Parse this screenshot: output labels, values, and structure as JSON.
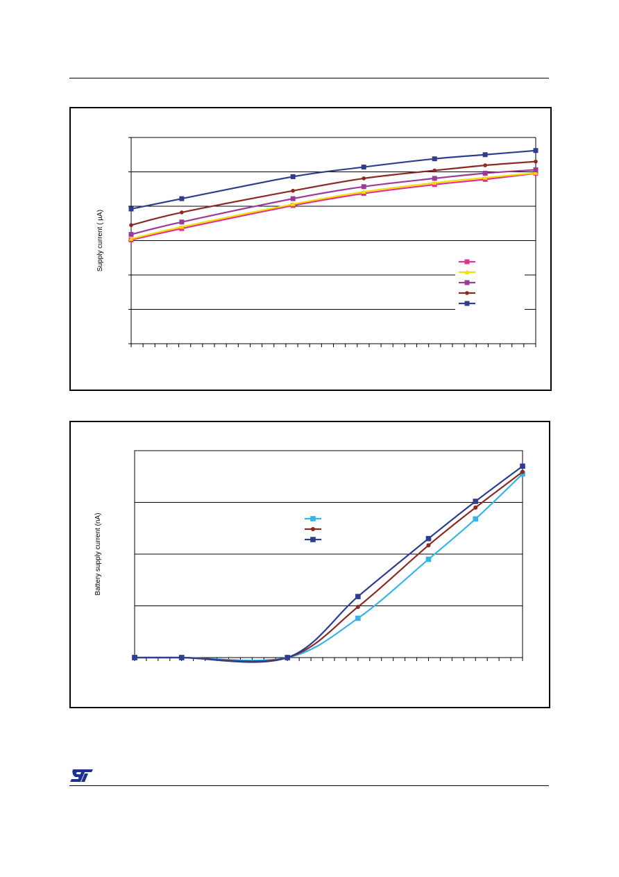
{
  "charts": [
    {
      "ylabel": "Supply current ( µA)",
      "series": [
        {
          "color": "#e0338c",
          "marker": "square",
          "points": [
            [
              0,
              3.02
            ],
            [
              2.5,
              3.35
            ],
            [
              8,
              4.02
            ],
            [
              11.5,
              4.37
            ],
            [
              15,
              4.63
            ],
            [
              17.5,
              4.78
            ],
            [
              20,
              4.96
            ]
          ]
        },
        {
          "color": "#f0e000",
          "marker": "triangle",
          "points": [
            [
              0,
              3.05
            ],
            [
              2.5,
              3.4
            ],
            [
              8,
              4.06
            ],
            [
              11.5,
              4.42
            ],
            [
              15,
              4.68
            ],
            [
              17.5,
              4.83
            ],
            [
              20,
              4.97
            ]
          ]
        },
        {
          "color": "#9a3a9a",
          "marker": "square",
          "points": [
            [
              0,
              3.18
            ],
            [
              2.5,
              3.54
            ],
            [
              8,
              4.22
            ],
            [
              11.5,
              4.57
            ],
            [
              15,
              4.81
            ],
            [
              17.5,
              4.96
            ],
            [
              20,
              5.06
            ]
          ]
        },
        {
          "color": "#8b2a22",
          "marker": "circle",
          "points": [
            [
              0,
              3.45
            ],
            [
              2.5,
              3.82
            ],
            [
              8,
              4.45
            ],
            [
              11.5,
              4.81
            ],
            [
              15,
              5.04
            ],
            [
              17.5,
              5.19
            ],
            [
              20,
              5.3
            ]
          ]
        },
        {
          "color": "#2e3d8f",
          "marker": "square",
          "points": [
            [
              0,
              3.92
            ],
            [
              2.5,
              4.22
            ],
            [
              8,
              4.86
            ],
            [
              11.5,
              5.14
            ],
            [
              15,
              5.38
            ],
            [
              17.5,
              5.5
            ],
            [
              20,
              5.62
            ]
          ]
        }
      ]
    },
    {
      "ylabel": "Battery supply current (nA)",
      "series": [
        {
          "color": "#33b5e8",
          "marker": "square",
          "points": [
            [
              0,
              0
            ],
            [
              4,
              0
            ],
            [
              13,
              0
            ],
            [
              19,
              0.76
            ],
            [
              25,
              1.9
            ],
            [
              29,
              2.68
            ],
            [
              33,
              3.55
            ]
          ]
        },
        {
          "color": "#8b2a22",
          "marker": "circle",
          "points": [
            [
              0,
              0
            ],
            [
              4,
              0
            ],
            [
              13,
              0
            ],
            [
              19,
              0.98
            ],
            [
              25,
              2.17
            ],
            [
              29,
              2.9
            ],
            [
              33,
              3.59
            ]
          ]
        },
        {
          "color": "#2e3d8f",
          "marker": "square",
          "points": [
            [
              0,
              0
            ],
            [
              4,
              0
            ],
            [
              13,
              0
            ],
            [
              19,
              1.18
            ],
            [
              25,
              2.3
            ],
            [
              29,
              3.02
            ],
            [
              33,
              3.7
            ]
          ]
        }
      ]
    }
  ]
}
